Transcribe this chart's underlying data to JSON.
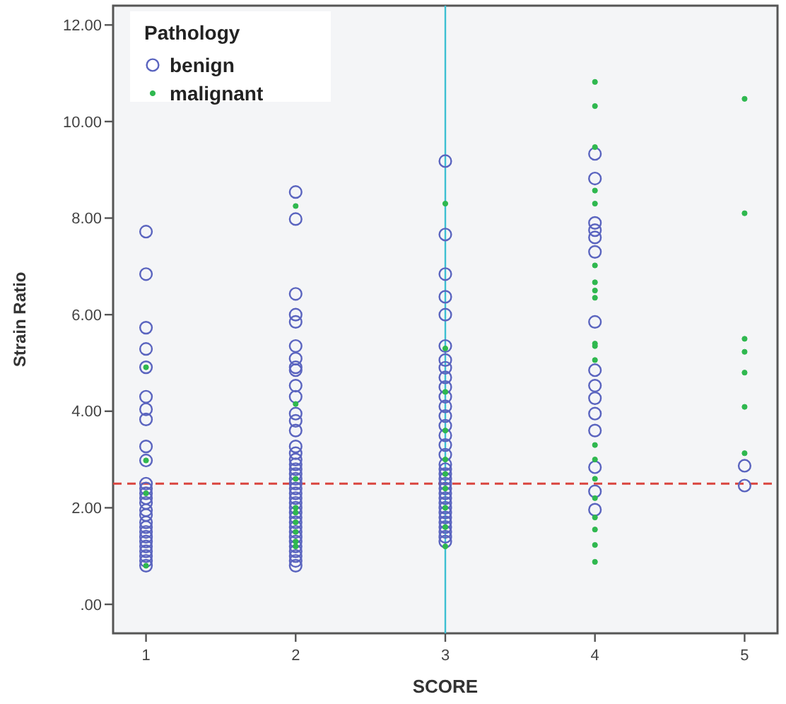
{
  "chart_data": {
    "type": "scatter",
    "xlabel": "SCORE",
    "ylabel": "Strain Ratio",
    "legend_title": "Pathology",
    "legend": "top left",
    "marker": "circle",
    "grid": false,
    "xlim": [
      0.78,
      5.22
    ],
    "xticks": [
      1,
      2,
      3,
      4,
      5
    ],
    "ylim": [
      -0.6,
      12.4
    ],
    "yticks": [
      {
        "value": 0,
        "label": ".00"
      },
      {
        "value": 2,
        "label": "2.00"
      },
      {
        "value": 4,
        "label": "4.00"
      },
      {
        "value": 6,
        "label": "6.00"
      },
      {
        "value": 8,
        "label": "8.00"
      },
      {
        "value": 10,
        "label": "10.00"
      },
      {
        "value": 12,
        "label": "12.00"
      }
    ],
    "ref_lines": [
      {
        "axis": "x",
        "value": 3,
        "color": "#3cbfd2",
        "line_style": "solid"
      },
      {
        "axis": "y",
        "value": 2.5,
        "color": "#d9453f",
        "line_style": "dashed"
      }
    ],
    "series": [
      {
        "name": "benign",
        "color": "#5a64bf",
        "x": [
          1,
          1,
          1,
          1,
          1,
          1,
          1,
          1,
          1,
          1,
          1,
          1,
          1,
          1,
          1,
          1,
          1,
          1,
          1,
          1,
          1,
          1,
          1,
          1,
          1,
          1,
          1,
          2,
          2,
          2,
          2,
          2,
          2,
          2,
          2,
          2,
          2,
          2,
          2,
          2,
          2,
          2,
          2,
          2,
          2,
          2,
          2,
          2,
          2,
          2,
          2,
          2,
          2,
          2,
          2,
          2,
          2,
          2,
          2,
          2,
          2,
          2,
          2,
          2,
          2,
          2,
          3,
          3,
          3,
          3,
          3,
          3,
          3,
          3,
          3,
          3,
          3,
          3,
          3,
          3,
          3,
          3,
          3,
          3,
          3,
          3,
          3,
          3,
          3,
          3,
          3,
          3,
          3,
          3,
          3,
          3,
          3,
          3,
          3,
          3,
          4,
          4,
          4,
          4,
          4,
          4,
          4,
          4,
          4,
          4,
          4,
          4,
          4,
          4,
          4,
          5,
          5
        ],
        "values": [
          7.72,
          6.84,
          5.73,
          5.29,
          4.91,
          4.3,
          4.04,
          3.83,
          3.27,
          2.98,
          2.5,
          2.4,
          2.3,
          2.2,
          2.1,
          1.95,
          1.85,
          1.7,
          1.6,
          1.5,
          1.4,
          1.3,
          1.2,
          1.1,
          1.0,
          0.9,
          0.8,
          8.54,
          7.98,
          6.43,
          6.0,
          5.85,
          5.35,
          5.09,
          4.91,
          4.85,
          4.53,
          4.3,
          3.95,
          3.8,
          3.6,
          3.27,
          3.13,
          3.0,
          2.9,
          2.8,
          2.7,
          2.6,
          2.5,
          2.4,
          2.3,
          2.2,
          2.1,
          2.0,
          1.9,
          1.8,
          1.7,
          1.6,
          1.5,
          1.4,
          1.3,
          1.2,
          1.1,
          1.0,
          0.9,
          0.8,
          9.18,
          7.66,
          6.84,
          6.37,
          6.0,
          5.35,
          5.06,
          4.9,
          4.7,
          4.5,
          4.3,
          4.1,
          3.9,
          3.7,
          3.5,
          3.3,
          3.1,
          2.9,
          2.8,
          2.7,
          2.6,
          2.5,
          2.4,
          2.3,
          2.2,
          2.1,
          2.0,
          1.9,
          1.8,
          1.7,
          1.6,
          1.5,
          1.4,
          1.3,
          9.33,
          8.82,
          7.9,
          7.75,
          7.6,
          7.3,
          5.85,
          4.85,
          4.53,
          4.27,
          3.95,
          3.6,
          2.84,
          2.34,
          1.96,
          2.87,
          2.46
        ]
      },
      {
        "name": "malignant",
        "color": "#2fb84f",
        "x": [
          1,
          1,
          1,
          1,
          2,
          2,
          2,
          2,
          2,
          2,
          2,
          2,
          2,
          3,
          3,
          3,
          3,
          3,
          3,
          3,
          3,
          3,
          3,
          4,
          4,
          4,
          4,
          4,
          4,
          4,
          4,
          4,
          4,
          4,
          4,
          4,
          4,
          4,
          4,
          4,
          4,
          4,
          4,
          5,
          5,
          5,
          5,
          5,
          5,
          5
        ],
        "values": [
          4.91,
          2.98,
          2.3,
          0.8,
          8.25,
          4.15,
          2.6,
          2.0,
          1.9,
          1.7,
          1.5,
          1.3,
          1.2,
          8.3,
          5.3,
          4.4,
          3.6,
          3.0,
          2.7,
          2.4,
          2.0,
          1.6,
          1.2,
          10.82,
          10.32,
          9.47,
          8.57,
          8.3,
          7.02,
          6.67,
          6.5,
          6.35,
          5.4,
          5.35,
          5.06,
          3.3,
          3.0,
          2.6,
          2.2,
          1.8,
          1.55,
          1.23,
          0.88,
          10.47,
          8.1,
          5.5,
          5.23,
          4.8,
          4.09,
          3.13
        ]
      }
    ]
  }
}
